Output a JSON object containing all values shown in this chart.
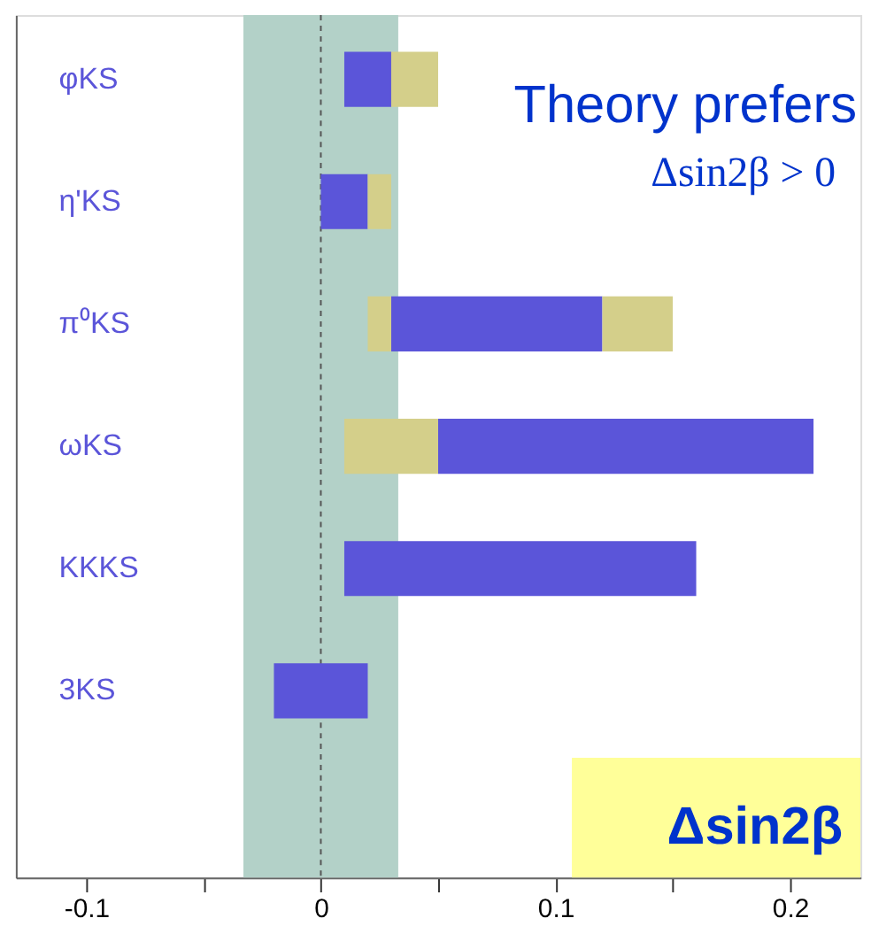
{
  "chart_data": {
    "type": "bar",
    "orientation": "horizontal",
    "categories": [
      "φKS",
      "η'KS",
      "π⁰KS",
      "ωKS",
      "KKKS",
      "3KS",
      null
    ],
    "series": [
      {
        "color": "#5b55d9",
        "base": [
          0.01,
          0.0,
          0.03,
          0.05,
          0.01,
          -0.02,
          null
        ],
        "values": [
          0.02,
          0.02,
          0.09,
          0.16,
          0.15,
          0.04,
          null
        ]
      },
      {
        "color": "#d4cf8a",
        "base": [
          0.03,
          0.02,
          0.02,
          0.01,
          null,
          null,
          null
        ],
        "values": [
          0.02,
          0.01,
          0.01,
          0.04,
          null,
          null,
          null
        ]
      },
      {
        "color": "#d4cf8a",
        "base": [
          null,
          null,
          0.12,
          null,
          null,
          null,
          null
        ],
        "values": [
          null,
          null,
          0.03,
          null,
          null,
          null,
          null
        ]
      }
    ],
    "xlim": [
      -0.13,
      0.23
    ],
    "xticks": [
      -0.1,
      {
        "value": -0.05,
        "label": null
      },
      0,
      {
        "value": 0.05,
        "label": null
      },
      0.1,
      {
        "value": 0.15,
        "label": null
      },
      0.2
    ],
    "bands": [
      {
        "axis": "x",
        "from": -0.033,
        "to": 0.033,
        "color": "#b3d1c8"
      }
    ],
    "ref_lines": [
      {
        "axis": "x",
        "value": 0,
        "line_style": "dashed",
        "color": "#555555"
      }
    ],
    "annotations": [
      "Theory prefers",
      "Δsin2β > 0",
      "Δsin2β"
    ],
    "grid": false,
    "legend": false
  }
}
